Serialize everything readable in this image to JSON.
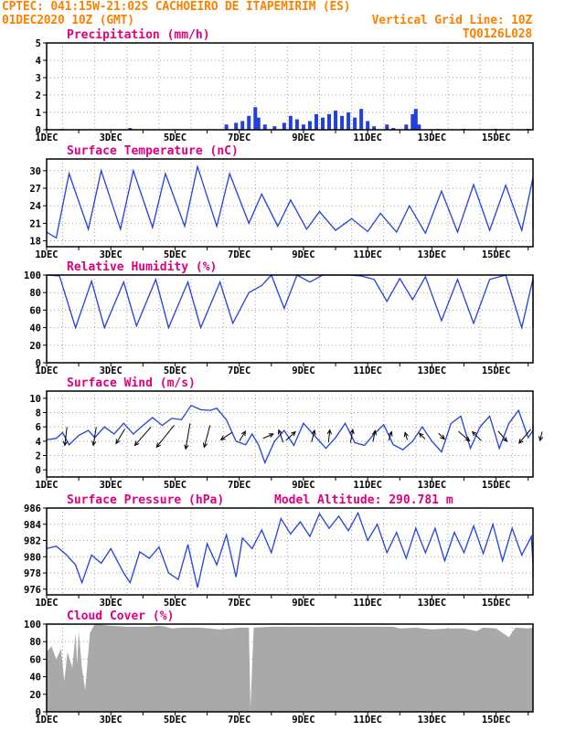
{
  "header": {
    "left_line1": "CPTEC:  041:15W-21:02S  CACHOEIRO DE ITAPEMIRIM (ES)",
    "left_line2": "01DEC2020 10Z (GMT)",
    "right_line2": "Vertical Grid Line: 10Z",
    "right_line3": "TQ0126L028"
  },
  "colors": {
    "header": "#ff8000",
    "title": "#e0007f",
    "series": "#2040e0",
    "cloud": "#a9a9a9",
    "grid": "#a0a0a0"
  },
  "chart_data": [
    {
      "type": "bar",
      "title": "Precipitation (mm/h)",
      "x_day_labels": [
        "1DEC",
        "3DEC",
        "5DEC",
        "7DEC",
        "9DEC",
        "11DEC",
        "13DEC",
        "15DEC"
      ],
      "x_range_days": [
        0,
        15
      ],
      "ylim": [
        0,
        5
      ],
      "yticks": [
        0,
        1,
        2,
        3,
        4,
        5
      ],
      "series_points": [
        [
          0,
          0.05
        ],
        [
          0.5,
          0.05
        ],
        [
          2.6,
          0.1
        ],
        [
          5.6,
          0.3
        ],
        [
          5.9,
          0.4
        ],
        [
          6.1,
          0.5
        ],
        [
          6.3,
          0.8
        ],
        [
          6.5,
          1.3
        ],
        [
          6.6,
          0.7
        ],
        [
          6.8,
          0.3
        ],
        [
          7.1,
          0.2
        ],
        [
          7.4,
          0.4
        ],
        [
          7.6,
          0.8
        ],
        [
          7.8,
          0.6
        ],
        [
          8.0,
          0.3
        ],
        [
          8.2,
          0.5
        ],
        [
          8.4,
          0.9
        ],
        [
          8.6,
          0.7
        ],
        [
          8.8,
          0.9
        ],
        [
          9.0,
          1.1
        ],
        [
          9.2,
          0.8
        ],
        [
          9.4,
          1.0
        ],
        [
          9.6,
          0.7
        ],
        [
          9.8,
          1.2
        ],
        [
          10.0,
          0.5
        ],
        [
          10.2,
          0.2
        ],
        [
          10.6,
          0.3
        ],
        [
          10.8,
          0.1
        ],
        [
          11.2,
          0.3
        ],
        [
          11.4,
          0.9
        ],
        [
          11.5,
          1.2
        ],
        [
          11.6,
          0.3
        ],
        [
          12.2,
          0.05
        ],
        [
          13.0,
          0.05
        ],
        [
          14.0,
          0.05
        ],
        [
          15.0,
          0.05
        ]
      ]
    },
    {
      "type": "line",
      "title": "Surface Temperature (nC)",
      "x_day_labels": [
        "1DEC",
        "3DEC",
        "5DEC",
        "7DEC",
        "9DEC",
        "11DEC",
        "13DEC",
        "15DEC"
      ],
      "x_range_days": [
        0,
        15
      ],
      "ylim": [
        17,
        32
      ],
      "yticks": [
        18,
        21,
        24,
        27,
        30
      ],
      "series_points": [
        [
          0,
          19.5
        ],
        [
          0.3,
          18.5
        ],
        [
          0.7,
          29.5
        ],
        [
          1.3,
          20
        ],
        [
          1.7,
          30
        ],
        [
          2.3,
          20
        ],
        [
          2.7,
          30
        ],
        [
          3.3,
          20.3
        ],
        [
          3.7,
          29.5
        ],
        [
          4.3,
          20.5
        ],
        [
          4.7,
          30.7
        ],
        [
          5.3,
          20.5
        ],
        [
          5.7,
          29.5
        ],
        [
          6.3,
          21
        ],
        [
          6.7,
          26
        ],
        [
          7.2,
          20.5
        ],
        [
          7.6,
          25
        ],
        [
          8.1,
          20
        ],
        [
          8.5,
          23
        ],
        [
          9.0,
          19.8
        ],
        [
          9.5,
          21.8
        ],
        [
          10.0,
          19.6
        ],
        [
          10.4,
          22.7
        ],
        [
          10.9,
          19.5
        ],
        [
          11.3,
          24
        ],
        [
          11.8,
          19.3
        ],
        [
          12.3,
          26.5
        ],
        [
          12.8,
          19.5
        ],
        [
          13.3,
          27.6
        ],
        [
          13.8,
          19.8
        ],
        [
          14.3,
          27.5
        ],
        [
          14.8,
          19.8
        ],
        [
          15.3,
          28.8
        ],
        [
          15.7,
          20
        ],
        [
          15.9,
          24.5
        ]
      ]
    },
    {
      "type": "line",
      "title": "Relative Humidity (%)",
      "x_day_labels": [
        "1DEC",
        "3DEC",
        "5DEC",
        "7DEC",
        "9DEC",
        "11DEC",
        "13DEC",
        "15DEC"
      ],
      "x_range_days": [
        0,
        15
      ],
      "ylim": [
        0,
        100
      ],
      "yticks": [
        0,
        20,
        40,
        60,
        80,
        100
      ],
      "series_points": [
        [
          0,
          100
        ],
        [
          0.4,
          99
        ],
        [
          0.9,
          40
        ],
        [
          1.4,
          93
        ],
        [
          1.8,
          40
        ],
        [
          2.4,
          92
        ],
        [
          2.8,
          42
        ],
        [
          3.4,
          95
        ],
        [
          3.8,
          40
        ],
        [
          4.4,
          92
        ],
        [
          4.8,
          40
        ],
        [
          5.4,
          92
        ],
        [
          5.8,
          45
        ],
        [
          6.3,
          80
        ],
        [
          6.7,
          88
        ],
        [
          7.0,
          100
        ],
        [
          7.4,
          62
        ],
        [
          7.8,
          100
        ],
        [
          8.2,
          92
        ],
        [
          8.6,
          100
        ],
        [
          9.0,
          100
        ],
        [
          9.4,
          100
        ],
        [
          9.8,
          99
        ],
        [
          10.2,
          95
        ],
        [
          10.6,
          70
        ],
        [
          11.0,
          96
        ],
        [
          11.4,
          72
        ],
        [
          11.8,
          98
        ],
        [
          12.3,
          48
        ],
        [
          12.8,
          95
        ],
        [
          13.3,
          45
        ],
        [
          13.8,
          95
        ],
        [
          14.3,
          100
        ],
        [
          14.8,
          40
        ],
        [
          15.3,
          96
        ],
        [
          15.8,
          40
        ],
        [
          16.0,
          58
        ]
      ]
    },
    {
      "type": "line",
      "title": "Surface Wind (m/s)",
      "x_day_labels": [
        "1DEC",
        "3DEC",
        "5DEC",
        "7DEC",
        "9DEC",
        "11DEC",
        "13DEC",
        "15DEC"
      ],
      "x_range_days": [
        0,
        15
      ],
      "ylim": [
        -1,
        11
      ],
      "yticks": [
        0,
        2,
        4,
        6,
        8,
        10
      ],
      "series_points": [
        [
          0,
          4.2
        ],
        [
          0.3,
          4.4
        ],
        [
          0.5,
          5.2
        ],
        [
          0.7,
          3.5
        ],
        [
          1.0,
          4.8
        ],
        [
          1.3,
          5.5
        ],
        [
          1.5,
          4.5
        ],
        [
          1.8,
          6.0
        ],
        [
          2.1,
          5.0
        ],
        [
          2.4,
          6.5
        ],
        [
          2.7,
          5.0
        ],
        [
          3.0,
          6.2
        ],
        [
          3.3,
          7.3
        ],
        [
          3.6,
          6.2
        ],
        [
          3.9,
          7.2
        ],
        [
          4.2,
          7.0
        ],
        [
          4.5,
          9.0
        ],
        [
          4.8,
          8.4
        ],
        [
          5.1,
          8.3
        ],
        [
          5.3,
          8.6
        ],
        [
          5.6,
          7.0
        ],
        [
          5.9,
          4.0
        ],
        [
          6.2,
          3.5
        ],
        [
          6.4,
          5.0
        ],
        [
          6.6,
          3.5
        ],
        [
          6.8,
          1.0
        ],
        [
          7.1,
          4.0
        ],
        [
          7.4,
          5.5
        ],
        [
          7.7,
          3.4
        ],
        [
          8.0,
          6.5
        ],
        [
          8.4,
          4.5
        ],
        [
          8.7,
          3.0
        ],
        [
          9.0,
          4.5
        ],
        [
          9.3,
          6.5
        ],
        [
          9.6,
          3.8
        ],
        [
          9.9,
          3.4
        ],
        [
          10.2,
          5.0
        ],
        [
          10.5,
          6.3
        ],
        [
          10.8,
          3.5
        ],
        [
          11.1,
          2.8
        ],
        [
          11.4,
          4.0
        ],
        [
          11.7,
          6.0
        ],
        [
          12.0,
          4.0
        ],
        [
          12.3,
          2.5
        ],
        [
          12.6,
          6.5
        ],
        [
          12.9,
          7.5
        ],
        [
          13.2,
          3.0
        ],
        [
          13.5,
          6.0
        ],
        [
          13.8,
          7.5
        ],
        [
          14.1,
          3.0
        ],
        [
          14.4,
          6.5
        ],
        [
          14.7,
          8.3
        ],
        [
          15.0,
          4.5
        ],
        [
          15.3,
          5.5
        ],
        [
          15.6,
          6.2
        ],
        [
          15.9,
          5.5
        ]
      ],
      "wind_vectors": [
        [
          0.6,
          -0.3,
          -2.5
        ],
        [
          1.5,
          -0.4,
          -2.5
        ],
        [
          2.3,
          -1.2,
          -2.0
        ],
        [
          3.0,
          -2.2,
          -2.5
        ],
        [
          3.7,
          -2.4,
          -3.0
        ],
        [
          4.4,
          -0.6,
          -3.5
        ],
        [
          5.0,
          -0.8,
          -3.0
        ],
        [
          5.6,
          -1.5,
          -1.0
        ],
        [
          6.1,
          0.8,
          1.3
        ],
        [
          6.9,
          1.4,
          0.6
        ],
        [
          7.3,
          -0.6,
          1.7
        ],
        [
          7.6,
          1.3,
          1.2
        ],
        [
          8.3,
          0.4,
          1.6
        ],
        [
          8.8,
          0.2,
          1.7
        ],
        [
          9.5,
          0.3,
          1.8
        ],
        [
          10.2,
          0.3,
          1.5
        ],
        [
          10.7,
          0.4,
          1.2
        ],
        [
          11.2,
          -0.3,
          1.0
        ],
        [
          11.7,
          -0.8,
          0.8
        ],
        [
          12.3,
          0.8,
          -0.8
        ],
        [
          13.0,
          1.5,
          -1.3
        ],
        [
          13.4,
          -1.2,
          1.2
        ],
        [
          14.2,
          1.2,
          -1.4
        ],
        [
          14.9,
          -1.6,
          -1.9
        ],
        [
          15.4,
          -0.3,
          -1.2
        ]
      ]
    },
    {
      "type": "line",
      "title": "Surface Pressure (hPa)",
      "annotation": "Model Altitude: 290.781 m",
      "x_day_labels": [
        "1DEC",
        "3DEC",
        "5DEC",
        "7DEC",
        "9DEC",
        "11DEC",
        "13DEC",
        "15DEC"
      ],
      "x_range_days": [
        0,
        15
      ],
      "ylim": [
        975.3,
        986
      ],
      "yticks": [
        976,
        978,
        980,
        982,
        984,
        986
      ],
      "series_points": [
        [
          0,
          981
        ],
        [
          0.3,
          981.3
        ],
        [
          0.6,
          980.3
        ],
        [
          0.9,
          979
        ],
        [
          1.1,
          976.8
        ],
        [
          1.4,
          980.2
        ],
        [
          1.7,
          979.2
        ],
        [
          2.0,
          981.0
        ],
        [
          2.4,
          978
        ],
        [
          2.6,
          976.8
        ],
        [
          2.9,
          980.6
        ],
        [
          3.2,
          979.8
        ],
        [
          3.5,
          981.2
        ],
        [
          3.8,
          978
        ],
        [
          4.1,
          977.2
        ],
        [
          4.4,
          981.5
        ],
        [
          4.7,
          976.2
        ],
        [
          5.0,
          981.6
        ],
        [
          5.3,
          979
        ],
        [
          5.6,
          982.7
        ],
        [
          5.9,
          977.5
        ],
        [
          6.1,
          982.3
        ],
        [
          6.4,
          981.0
        ],
        [
          6.7,
          983.3
        ],
        [
          7.0,
          980.5
        ],
        [
          7.3,
          984.7
        ],
        [
          7.6,
          982.8
        ],
        [
          7.9,
          984.3
        ],
        [
          8.2,
          982.5
        ],
        [
          8.5,
          985.3
        ],
        [
          8.8,
          983.5
        ],
        [
          9.1,
          985.0
        ],
        [
          9.4,
          983.2
        ],
        [
          9.7,
          985.4
        ],
        [
          10.0,
          982.0
        ],
        [
          10.3,
          984.0
        ],
        [
          10.6,
          980.5
        ],
        [
          10.9,
          983.0
        ],
        [
          11.2,
          979.8
        ],
        [
          11.5,
          983.5
        ],
        [
          11.8,
          980.5
        ],
        [
          12.1,
          983.5
        ],
        [
          12.4,
          979.5
        ],
        [
          12.7,
          983.0
        ],
        [
          13.0,
          980.5
        ],
        [
          13.3,
          983.8
        ],
        [
          13.6,
          980.4
        ],
        [
          13.9,
          984.0
        ],
        [
          14.2,
          979.5
        ],
        [
          14.5,
          983.5
        ],
        [
          14.8,
          980.2
        ],
        [
          15.1,
          982.5
        ],
        [
          15.4,
          979.0
        ],
        [
          15.6,
          980.4
        ],
        [
          15.8,
          977.5
        ],
        [
          16.0,
          980.0
        ]
      ]
    },
    {
      "type": "area",
      "title": "Cloud Cover (%)",
      "x_day_labels": [
        "1DEC",
        "3DEC",
        "5DEC",
        "7DEC",
        "9DEC",
        "11DEC",
        "13DEC",
        "15DEC"
      ],
      "x_range_days": [
        0,
        15
      ],
      "ylim": [
        0,
        100
      ],
      "yticks": [
        0,
        20,
        40,
        60,
        80,
        100
      ],
      "series_points": [
        [
          0,
          68
        ],
        [
          0.15,
          75
        ],
        [
          0.3,
          60
        ],
        [
          0.45,
          72
        ],
        [
          0.55,
          35
        ],
        [
          0.65,
          68
        ],
        [
          0.8,
          50
        ],
        [
          0.9,
          90
        ],
        [
          0.95,
          55
        ],
        [
          1.0,
          92
        ],
        [
          1.1,
          50
        ],
        [
          1.2,
          25
        ],
        [
          1.35,
          90
        ],
        [
          1.5,
          100
        ],
        [
          2.0,
          98
        ],
        [
          2.5,
          97
        ],
        [
          3.0,
          97
        ],
        [
          3.2,
          97
        ],
        [
          3.5,
          98
        ],
        [
          3.7,
          97
        ],
        [
          3.9,
          95
        ],
        [
          4.2,
          96
        ],
        [
          4.8,
          96
        ],
        [
          5.4,
          94
        ],
        [
          6.0,
          96
        ],
        [
          6.3,
          96
        ],
        [
          6.35,
          4
        ],
        [
          6.45,
          96
        ],
        [
          7.0,
          97
        ],
        [
          8.0,
          97
        ],
        [
          9.0,
          97
        ],
        [
          10.0,
          97
        ],
        [
          10.8,
          97
        ],
        [
          11.0,
          95
        ],
        [
          11.5,
          96
        ],
        [
          12.0,
          94
        ],
        [
          12.5,
          95
        ],
        [
          13.0,
          95
        ],
        [
          13.4,
          92
        ],
        [
          13.6,
          96
        ],
        [
          14.0,
          95
        ],
        [
          14.4,
          85
        ],
        [
          14.6,
          96
        ],
        [
          15.0,
          95
        ],
        [
          15.5,
          96
        ],
        [
          16.0,
          95
        ]
      ]
    }
  ]
}
